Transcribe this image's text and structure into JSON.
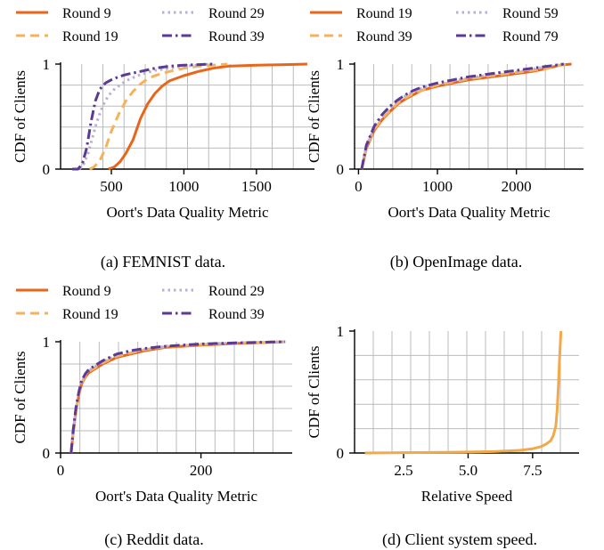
{
  "colors": {
    "round_a": "#e8651a",
    "round_b": "#f6b25a",
    "round_c": "#b8aed6",
    "round_d": "#5b3a95",
    "speed": "#f2a94a",
    "grid": "#bbbbbb"
  },
  "chart_data": [
    {
      "type": "line",
      "caption": "(a) FEMNIST data.",
      "xlabel": "Oort's Data Quality Metric",
      "ylabel": "CDF of Clients",
      "xlim": [
        150,
        1900
      ],
      "ylim": [
        0,
        1
      ],
      "xticks": [
        500,
        1000,
        1500
      ],
      "yticks": [
        0,
        1
      ],
      "grid": true,
      "legend": "above",
      "series": [
        {
          "name": "Round 9",
          "style": "solid",
          "color_key": "round_a",
          "x": [
            480,
            520,
            560,
            600,
            650,
            700,
            750,
            800,
            850,
            900,
            1000,
            1100,
            1200,
            1300,
            1500,
            1700,
            1850
          ],
          "y": [
            0.0,
            0.02,
            0.07,
            0.15,
            0.28,
            0.48,
            0.62,
            0.72,
            0.79,
            0.84,
            0.89,
            0.93,
            0.96,
            0.98,
            0.99,
            0.995,
            1.0
          ]
        },
        {
          "name": "Round 19",
          "style": "dashed",
          "color_key": "round_b",
          "x": [
            350,
            380,
            420,
            460,
            500,
            550,
            600,
            650,
            700,
            750,
            800,
            900,
            1000,
            1100,
            1200,
            1300
          ],
          "y": [
            0.0,
            0.02,
            0.08,
            0.2,
            0.36,
            0.52,
            0.65,
            0.74,
            0.81,
            0.86,
            0.89,
            0.93,
            0.96,
            0.98,
            0.99,
            1.0
          ]
        },
        {
          "name": "Round 29",
          "style": "dotted",
          "color_key": "round_c",
          "x": [
            280,
            310,
            340,
            370,
            400,
            440,
            480,
            520,
            560,
            600,
            650,
            700,
            800,
            900,
            1000,
            1100,
            1200
          ],
          "y": [
            0.0,
            0.05,
            0.15,
            0.3,
            0.45,
            0.6,
            0.7,
            0.76,
            0.8,
            0.84,
            0.87,
            0.9,
            0.94,
            0.96,
            0.98,
            0.99,
            1.0
          ]
        },
        {
          "name": "Round 39",
          "style": "dashdot",
          "color_key": "round_d",
          "x": [
            230,
            270,
            300,
            330,
            360,
            390,
            420,
            460,
            500,
            550,
            600,
            700,
            800,
            900,
            1000,
            1100,
            1200
          ],
          "y": [
            0.0,
            0.0,
            0.05,
            0.2,
            0.45,
            0.65,
            0.76,
            0.82,
            0.85,
            0.88,
            0.9,
            0.93,
            0.96,
            0.98,
            0.99,
            0.995,
            1.0
          ]
        }
      ]
    },
    {
      "type": "line",
      "caption": "(b) OpenImage data.",
      "xlabel": "Oort's Data Quality Metric",
      "ylabel": "CDF of Clients",
      "xlim": [
        -50,
        2850
      ],
      "ylim": [
        0,
        1
      ],
      "xticks": [
        0,
        1000,
        2000
      ],
      "yticks": [
        0,
        1
      ],
      "grid": true,
      "legend": "above",
      "series": [
        {
          "name": "Round 19",
          "style": "solid",
          "color_key": "round_a",
          "x": [
            40,
            100,
            200,
            300,
            400,
            500,
            600,
            700,
            800,
            1000,
            1200,
            1400,
            1600,
            1800,
            2000,
            2200,
            2400,
            2550,
            2700
          ],
          "y": [
            0.0,
            0.2,
            0.37,
            0.47,
            0.55,
            0.62,
            0.67,
            0.71,
            0.75,
            0.79,
            0.82,
            0.85,
            0.87,
            0.89,
            0.91,
            0.93,
            0.96,
            0.99,
            1.0
          ]
        },
        {
          "name": "Round 39",
          "style": "dashed",
          "color_key": "round_b",
          "x": [
            40,
            100,
            200,
            300,
            400,
            500,
            600,
            700,
            800,
            1000,
            1200,
            1400,
            1600,
            1800,
            2000,
            2200,
            2400,
            2550,
            2700
          ],
          "y": [
            0.0,
            0.21,
            0.38,
            0.48,
            0.56,
            0.63,
            0.68,
            0.72,
            0.75,
            0.8,
            0.83,
            0.86,
            0.88,
            0.9,
            0.92,
            0.94,
            0.96,
            0.99,
            1.0
          ]
        },
        {
          "name": "Round 59",
          "style": "dotted",
          "color_key": "round_c",
          "x": [
            40,
            100,
            200,
            300,
            400,
            500,
            600,
            700,
            800,
            1000,
            1200,
            1400,
            1600,
            1800,
            2000,
            2200,
            2400,
            2600
          ],
          "y": [
            0.0,
            0.22,
            0.4,
            0.5,
            0.58,
            0.65,
            0.7,
            0.74,
            0.77,
            0.81,
            0.84,
            0.87,
            0.89,
            0.91,
            0.93,
            0.95,
            0.98,
            1.0
          ]
        },
        {
          "name": "Round 79",
          "style": "dashdot",
          "color_key": "round_d",
          "x": [
            40,
            100,
            200,
            300,
            400,
            500,
            600,
            700,
            800,
            1000,
            1200,
            1400,
            1600,
            1800,
            2000,
            2200,
            2400,
            2600
          ],
          "y": [
            0.0,
            0.23,
            0.41,
            0.52,
            0.6,
            0.66,
            0.71,
            0.75,
            0.78,
            0.82,
            0.85,
            0.88,
            0.9,
            0.92,
            0.94,
            0.96,
            0.98,
            1.0
          ]
        }
      ]
    },
    {
      "type": "line",
      "caption": "(c) Reddit data.",
      "xlabel": "Oort's Data Quality Metric",
      "ylabel": "CDF of Clients",
      "xlim": [
        0,
        330
      ],
      "ylim": [
        0,
        1
      ],
      "xticks": [
        0,
        200
      ],
      "yticks": [
        0,
        1
      ],
      "grid": true,
      "legend": "above",
      "series": [
        {
          "name": "Round 9",
          "style": "solid",
          "color_key": "round_a",
          "x": [
            15,
            18,
            22,
            26,
            30,
            35,
            40,
            50,
            60,
            70,
            80,
            100,
            120,
            150,
            200,
            250,
            300,
            320
          ],
          "y": [
            0.0,
            0.18,
            0.38,
            0.52,
            0.62,
            0.68,
            0.72,
            0.76,
            0.8,
            0.83,
            0.86,
            0.89,
            0.92,
            0.95,
            0.97,
            0.985,
            0.995,
            1.0
          ]
        },
        {
          "name": "Round 19",
          "style": "dashed",
          "color_key": "round_b",
          "x": [
            15,
            18,
            22,
            26,
            30,
            35,
            40,
            50,
            60,
            70,
            80,
            100,
            120,
            150,
            200,
            250,
            300,
            320
          ],
          "y": [
            0.0,
            0.19,
            0.39,
            0.53,
            0.63,
            0.69,
            0.73,
            0.77,
            0.81,
            0.84,
            0.87,
            0.9,
            0.93,
            0.955,
            0.975,
            0.99,
            0.997,
            1.0
          ]
        },
        {
          "name": "Round 29",
          "style": "dotted",
          "color_key": "round_c",
          "x": [
            15,
            18,
            22,
            26,
            30,
            35,
            40,
            50,
            60,
            70,
            80,
            100,
            120,
            150,
            200,
            250,
            300,
            320
          ],
          "y": [
            0.0,
            0.2,
            0.4,
            0.54,
            0.64,
            0.7,
            0.74,
            0.78,
            0.82,
            0.85,
            0.88,
            0.91,
            0.93,
            0.96,
            0.98,
            0.99,
            0.997,
            1.0
          ]
        },
        {
          "name": "Round 39",
          "style": "dashdot",
          "color_key": "round_d",
          "x": [
            15,
            18,
            22,
            26,
            30,
            35,
            40,
            50,
            60,
            70,
            80,
            100,
            120,
            150,
            200,
            250,
            300,
            320
          ],
          "y": [
            0.0,
            0.21,
            0.41,
            0.55,
            0.65,
            0.71,
            0.75,
            0.79,
            0.83,
            0.86,
            0.89,
            0.92,
            0.94,
            0.96,
            0.98,
            0.99,
            0.998,
            1.0
          ]
        }
      ]
    },
    {
      "type": "line",
      "caption": "(d) Client system speed.",
      "xlabel": "Relative Speed",
      "ylabel": "CDF of Clients",
      "xlim": [
        0.6,
        9.3
      ],
      "ylim": [
        0,
        1
      ],
      "xticks": [
        2.5,
        5.0,
        7.5
      ],
      "xtick_labels": [
        "2.5",
        "5.0",
        "7.5"
      ],
      "yticks": [
        0,
        1
      ],
      "grid": true,
      "legend": "none",
      "series": [
        {
          "style": "solid",
          "color_key": "speed",
          "x": [
            1.0,
            2.0,
            3.0,
            4.0,
            5.0,
            6.0,
            6.5,
            7.0,
            7.5,
            7.8,
            8.0,
            8.2,
            8.3,
            8.4,
            8.45,
            8.5,
            8.55,
            8.6
          ],
          "y": [
            0.0,
            0.002,
            0.004,
            0.006,
            0.008,
            0.012,
            0.016,
            0.022,
            0.035,
            0.05,
            0.07,
            0.1,
            0.14,
            0.22,
            0.35,
            0.55,
            0.8,
            1.0
          ]
        }
      ]
    }
  ]
}
